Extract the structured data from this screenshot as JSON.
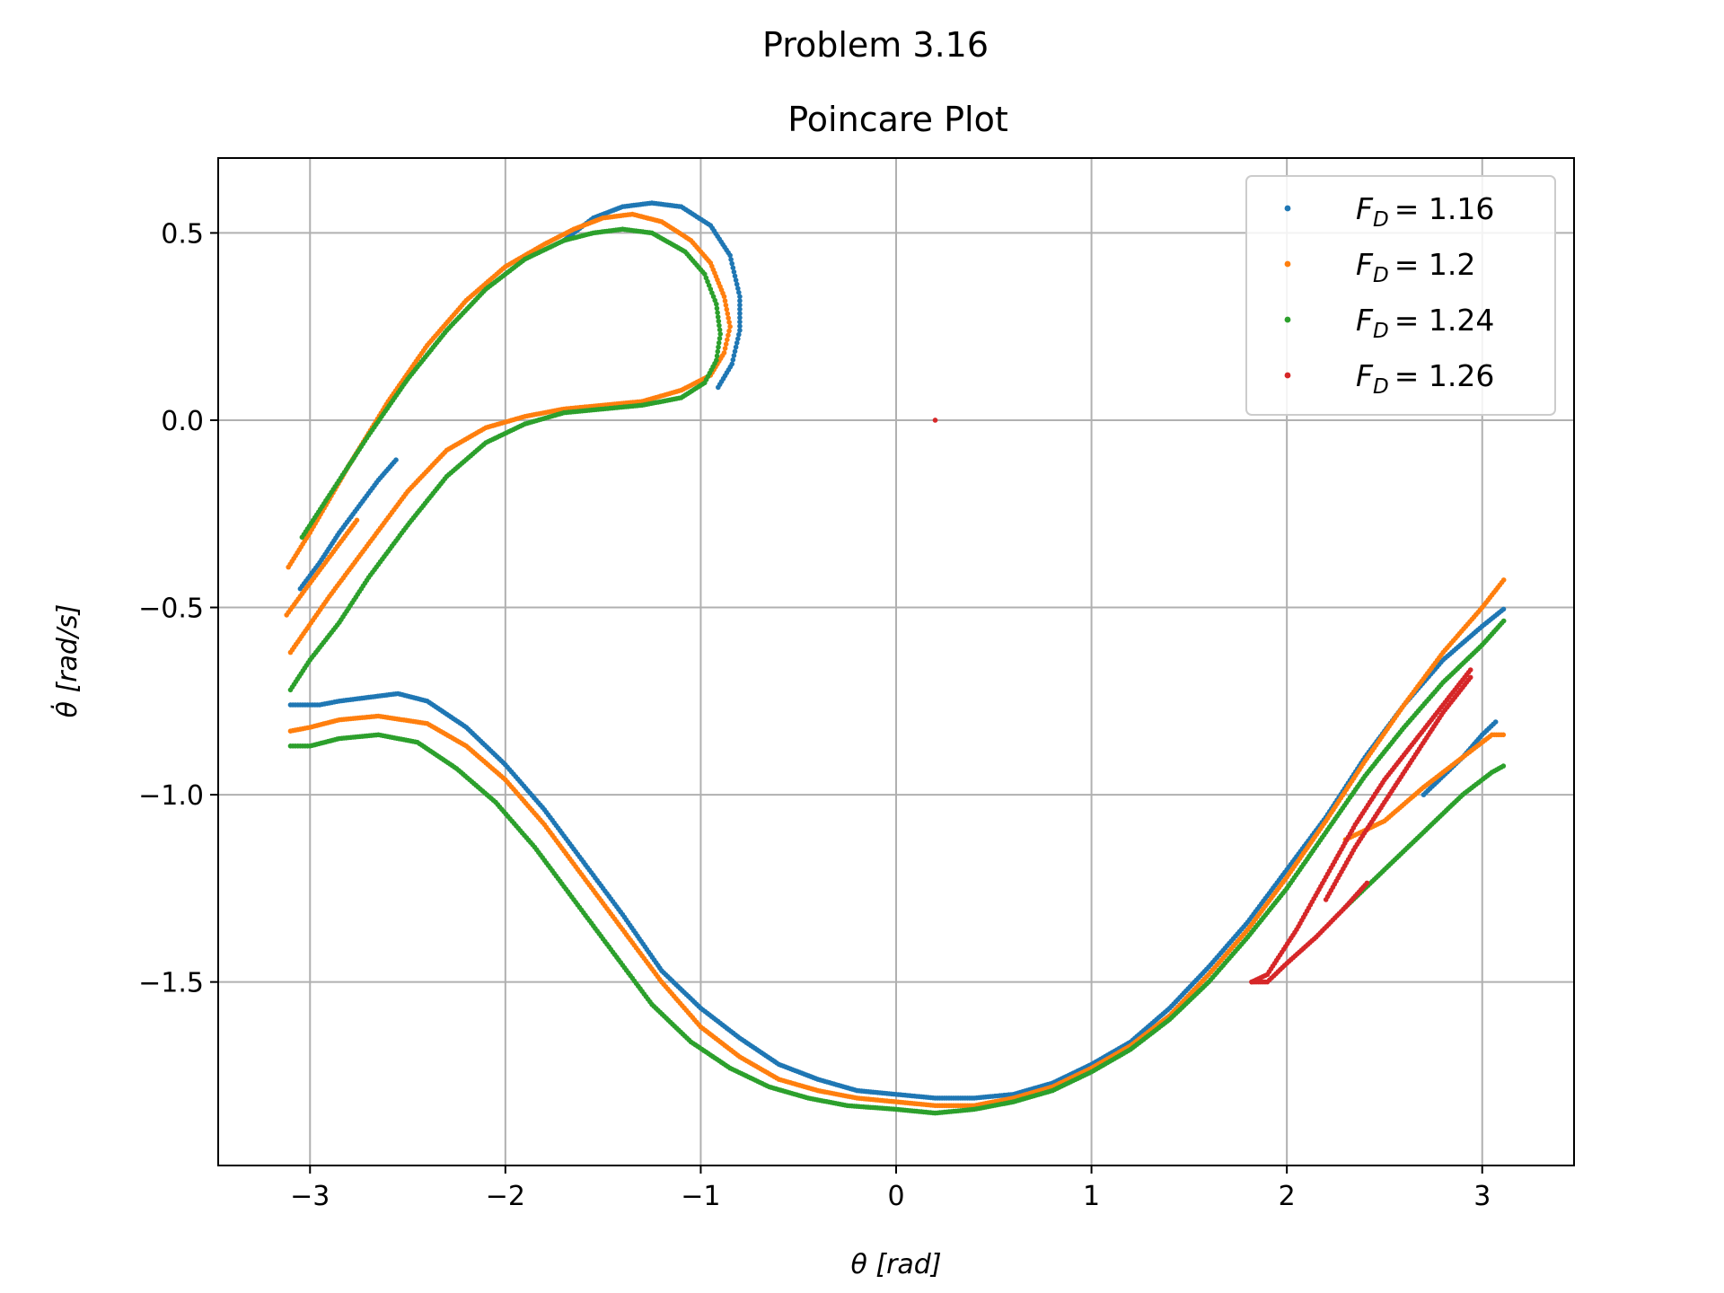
{
  "chart_data": {
    "type": "scatter",
    "suptitle": "Problem 3.16",
    "title": "Poincare Plot",
    "xlabel": "θ [rad]",
    "ylabel": "θ̇ [rad/s]",
    "xlim": [
      -3.47,
      3.47
    ],
    "ylim": [
      -1.99,
      0.7
    ],
    "xticks": [
      -3,
      -2,
      -1,
      0,
      1,
      2,
      3
    ],
    "yticks": [
      0.5,
      0.0,
      -0.5,
      -1.0,
      -1.5
    ],
    "xtick_labels": [
      "−3",
      "−2",
      "−1",
      "0",
      "1",
      "2",
      "3"
    ],
    "ytick_labels": [
      "0.5",
      "0.0",
      "−0.5",
      "−1.0",
      "−1.5"
    ],
    "grid": true,
    "legend_position": "top-right",
    "series": [
      {
        "name": "F_D = 1.16",
        "label_sub": "D",
        "label_value": "= 1.16",
        "color": "#1f77b4",
        "curves": [
          [
            [
              -3.05,
              -0.45
            ],
            [
              -2.95,
              -0.38
            ],
            [
              -2.85,
              -0.3
            ],
            [
              -2.75,
              -0.23
            ],
            [
              -2.65,
              -0.16
            ],
            [
              -2.55,
              -0.1
            ]
          ],
          [
            [
              -3.1,
              -0.76
            ],
            [
              -3.05,
              -0.76
            ],
            [
              -2.95,
              -0.76
            ],
            [
              -2.85,
              -0.75
            ],
            [
              -2.7,
              -0.74
            ],
            [
              -2.55,
              -0.73
            ],
            [
              -2.4,
              -0.75
            ],
            [
              -2.2,
              -0.82
            ],
            [
              -2.0,
              -0.92
            ],
            [
              -1.8,
              -1.04
            ],
            [
              -1.6,
              -1.18
            ],
            [
              -1.4,
              -1.32
            ],
            [
              -1.2,
              -1.47
            ],
            [
              -1.0,
              -1.57
            ],
            [
              -0.8,
              -1.65
            ],
            [
              -0.6,
              -1.72
            ],
            [
              -0.4,
              -1.76
            ],
            [
              -0.2,
              -1.79
            ],
            [
              0.0,
              -1.8
            ],
            [
              0.2,
              -1.81
            ],
            [
              0.4,
              -1.81
            ],
            [
              0.6,
              -1.8
            ],
            [
              0.8,
              -1.77
            ],
            [
              1.0,
              -1.72
            ],
            [
              1.2,
              -1.66
            ],
            [
              1.4,
              -1.57
            ],
            [
              1.6,
              -1.46
            ],
            [
              1.8,
              -1.34
            ],
            [
              2.0,
              -1.2
            ],
            [
              2.2,
              -1.06
            ],
            [
              2.4,
              -0.9
            ],
            [
              2.6,
              -0.76
            ],
            [
              2.8,
              -0.64
            ],
            [
              3.0,
              -0.55
            ],
            [
              3.12,
              -0.5
            ]
          ],
          [
            [
              -1.7,
              0.48
            ],
            [
              -1.55,
              0.54
            ],
            [
              -1.4,
              0.57
            ],
            [
              -1.25,
              0.58
            ],
            [
              -1.1,
              0.57
            ],
            [
              -0.95,
              0.52
            ],
            [
              -0.85,
              0.44
            ],
            [
              -0.8,
              0.33
            ],
            [
              -0.8,
              0.24
            ],
            [
              -0.84,
              0.15
            ],
            [
              -0.92,
              0.08
            ]
          ],
          [
            [
              2.7,
              -1.0
            ],
            [
              2.8,
              -0.95
            ],
            [
              2.9,
              -0.9
            ],
            [
              3.0,
              -0.84
            ],
            [
              3.08,
              -0.8
            ]
          ]
        ]
      },
      {
        "name": "F_D = 1.2",
        "label_sub": "D",
        "label_value": "= 1.2",
        "color": "#ff7f0e",
        "curves": [
          [
            [
              -3.12,
              -0.52
            ],
            [
              -3.05,
              -0.47
            ],
            [
              -2.95,
              -0.4
            ],
            [
              -2.85,
              -0.33
            ],
            [
              -2.75,
              -0.26
            ]
          ],
          [
            [
              -3.1,
              -0.83
            ],
            [
              -3.0,
              -0.82
            ],
            [
              -2.85,
              -0.8
            ],
            [
              -2.65,
              -0.79
            ],
            [
              -2.4,
              -0.81
            ],
            [
              -2.2,
              -0.87
            ],
            [
              -2.0,
              -0.96
            ],
            [
              -1.8,
              -1.08
            ],
            [
              -1.6,
              -1.22
            ],
            [
              -1.4,
              -1.36
            ],
            [
              -1.2,
              -1.5
            ],
            [
              -1.0,
              -1.62
            ],
            [
              -0.8,
              -1.7
            ],
            [
              -0.6,
              -1.76
            ],
            [
              -0.4,
              -1.79
            ],
            [
              -0.2,
              -1.81
            ],
            [
              0.0,
              -1.82
            ],
            [
              0.2,
              -1.83
            ],
            [
              0.4,
              -1.83
            ],
            [
              0.6,
              -1.81
            ],
            [
              0.8,
              -1.78
            ],
            [
              1.0,
              -1.73
            ],
            [
              1.2,
              -1.67
            ],
            [
              1.4,
              -1.59
            ],
            [
              1.6,
              -1.48
            ],
            [
              1.8,
              -1.36
            ],
            [
              2.0,
              -1.22
            ],
            [
              2.2,
              -1.07
            ],
            [
              2.4,
              -0.91
            ],
            [
              2.6,
              -0.76
            ],
            [
              2.8,
              -0.62
            ],
            [
              3.0,
              -0.5
            ],
            [
              3.12,
              -0.42
            ]
          ],
          [
            [
              -3.1,
              -0.62
            ],
            [
              -2.9,
              -0.47
            ],
            [
              -2.7,
              -0.33
            ],
            [
              -2.5,
              -0.19
            ],
            [
              -2.3,
              -0.08
            ],
            [
              -2.1,
              -0.02
            ],
            [
              -1.9,
              0.01
            ],
            [
              -1.7,
              0.03
            ],
            [
              -1.5,
              0.04
            ],
            [
              -1.3,
              0.05
            ],
            [
              -1.1,
              0.08
            ],
            [
              -0.95,
              0.12
            ],
            [
              -0.88,
              0.18
            ],
            [
              -0.85,
              0.25
            ],
            [
              -0.88,
              0.33
            ],
            [
              -0.95,
              0.42
            ],
            [
              -1.05,
              0.48
            ],
            [
              -1.2,
              0.53
            ],
            [
              -1.35,
              0.55
            ],
            [
              -1.5,
              0.54
            ],
            [
              -1.65,
              0.51
            ],
            [
              -1.8,
              0.47
            ],
            [
              -2.0,
              0.41
            ],
            [
              -2.2,
              0.32
            ],
            [
              -2.4,
              0.2
            ],
            [
              -2.6,
              0.05
            ],
            [
              -2.8,
              -0.12
            ],
            [
              -3.0,
              -0.3
            ],
            [
              -3.12,
              -0.4
            ]
          ],
          [
            [
              2.3,
              -1.12
            ],
            [
              2.5,
              -1.07
            ],
            [
              2.7,
              -0.98
            ],
            [
              2.9,
              -0.9
            ],
            [
              3.05,
              -0.84
            ],
            [
              3.12,
              -0.84
            ]
          ]
        ]
      },
      {
        "name": "F_D = 1.24",
        "label_sub": "D",
        "label_value": "= 1.24",
        "color": "#2ca02c",
        "curves": [
          [
            [
              -3.1,
              -0.72
            ],
            [
              -3.0,
              -0.64
            ],
            [
              -2.85,
              -0.54
            ],
            [
              -2.7,
              -0.42
            ],
            [
              -2.5,
              -0.28
            ],
            [
              -2.3,
              -0.15
            ],
            [
              -2.1,
              -0.06
            ],
            [
              -1.9,
              -0.01
            ],
            [
              -1.7,
              0.02
            ],
            [
              -1.5,
              0.03
            ],
            [
              -1.3,
              0.04
            ],
            [
              -1.1,
              0.06
            ],
            [
              -0.98,
              0.1
            ],
            [
              -0.92,
              0.16
            ],
            [
              -0.9,
              0.23
            ],
            [
              -0.92,
              0.31
            ],
            [
              -0.98,
              0.39
            ],
            [
              -1.08,
              0.45
            ],
            [
              -1.25,
              0.5
            ],
            [
              -1.4,
              0.51
            ],
            [
              -1.55,
              0.5
            ],
            [
              -1.7,
              0.48
            ],
            [
              -1.9,
              0.43
            ],
            [
              -2.1,
              0.35
            ],
            [
              -2.3,
              0.24
            ],
            [
              -2.5,
              0.11
            ],
            [
              -2.7,
              -0.04
            ],
            [
              -2.9,
              -0.2
            ],
            [
              -3.05,
              -0.32
            ]
          ],
          [
            [
              -3.1,
              -0.87
            ],
            [
              -3.0,
              -0.87
            ],
            [
              -2.85,
              -0.85
            ],
            [
              -2.65,
              -0.84
            ],
            [
              -2.45,
              -0.86
            ],
            [
              -2.25,
              -0.93
            ],
            [
              -2.05,
              -1.02
            ],
            [
              -1.85,
              -1.14
            ],
            [
              -1.65,
              -1.28
            ],
            [
              -1.45,
              -1.42
            ],
            [
              -1.25,
              -1.56
            ],
            [
              -1.05,
              -1.66
            ],
            [
              -0.85,
              -1.73
            ],
            [
              -0.65,
              -1.78
            ],
            [
              -0.45,
              -1.81
            ],
            [
              -0.25,
              -1.83
            ],
            [
              0.0,
              -1.84
            ],
            [
              0.2,
              -1.85
            ],
            [
              0.4,
              -1.84
            ],
            [
              0.6,
              -1.82
            ],
            [
              0.8,
              -1.79
            ],
            [
              1.0,
              -1.74
            ],
            [
              1.2,
              -1.68
            ],
            [
              1.4,
              -1.6
            ],
            [
              1.6,
              -1.5
            ],
            [
              1.8,
              -1.38
            ],
            [
              2.0,
              -1.25
            ],
            [
              2.2,
              -1.1
            ],
            [
              2.4,
              -0.95
            ],
            [
              2.6,
              -0.82
            ],
            [
              2.8,
              -0.7
            ],
            [
              3.0,
              -0.6
            ],
            [
              3.12,
              -0.53
            ]
          ],
          [
            [
              2.3,
              -1.3
            ],
            [
              2.5,
              -1.2
            ],
            [
              2.7,
              -1.1
            ],
            [
              2.9,
              -1.0
            ],
            [
              3.05,
              -0.94
            ],
            [
              3.12,
              -0.92
            ]
          ]
        ]
      },
      {
        "name": "F_D = 1.26",
        "label_sub": "D",
        "label_value": "= 1.26",
        "color": "#d62728",
        "curves": [
          [
            [
              1.82,
              -1.5
            ],
            [
              1.9,
              -1.48
            ],
            [
              2.05,
              -1.36
            ],
            [
              2.2,
              -1.22
            ],
            [
              2.35,
              -1.08
            ],
            [
              2.5,
              -0.96
            ],
            [
              2.65,
              -0.86
            ],
            [
              2.8,
              -0.76
            ],
            [
              2.95,
              -0.66
            ]
          ],
          [
            [
              1.82,
              -1.5
            ],
            [
              1.9,
              -1.5
            ],
            [
              2.0,
              -1.45
            ],
            [
              2.15,
              -1.38
            ],
            [
              2.3,
              -1.3
            ],
            [
              2.42,
              -1.23
            ]
          ],
          [
            [
              2.2,
              -1.28
            ],
            [
              2.35,
              -1.14
            ],
            [
              2.5,
              -1.02
            ],
            [
              2.65,
              -0.9
            ],
            [
              2.8,
              -0.78
            ],
            [
              2.95,
              -0.68
            ]
          ]
        ]
      }
    ],
    "isolated_points": [
      {
        "x": 0.2,
        "y": 0.0,
        "color": "#d62728"
      }
    ]
  }
}
